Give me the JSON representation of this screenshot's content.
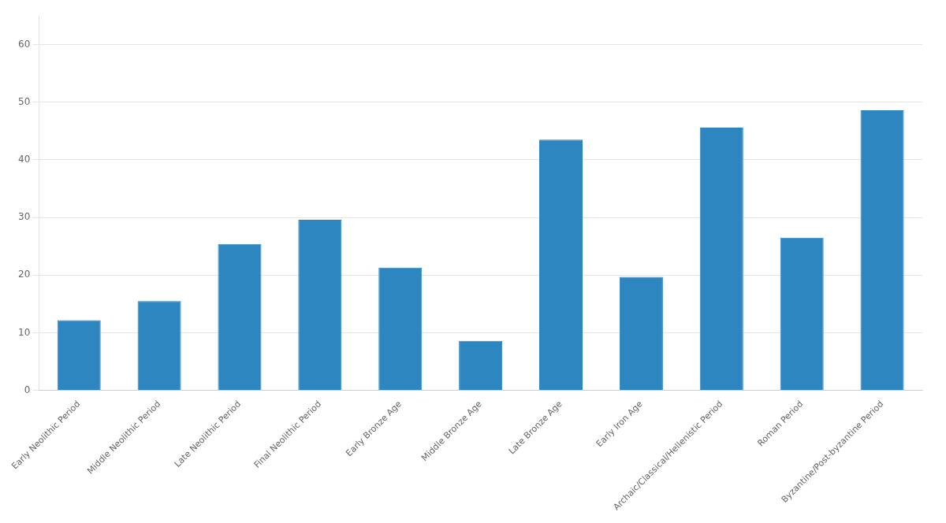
{
  "chart_data": {
    "type": "bar",
    "categories": [
      "Early Neolithic Period",
      "Middle Neolithic Period",
      "Late Neolithic Period",
      "Final Neolithic Period",
      "Early Bronze Age",
      "Middle Bronze Age",
      "Late Bronze Age",
      "Early Iron Age",
      "Archaic/Classical/Hellenistic Period",
      "Roman Period",
      "Byzantine/Post-byzantine Period"
    ],
    "values": [
      12.2,
      15.5,
      25.4,
      29.6,
      21.3,
      8.6,
      43.5,
      19.7,
      45.6,
      26.5,
      48.6
    ],
    "color": "#2e86c1",
    "ylim": [
      0,
      65
    ],
    "yticks": [
      0,
      10,
      20,
      30,
      40,
      50,
      60
    ],
    "grid": true
  }
}
